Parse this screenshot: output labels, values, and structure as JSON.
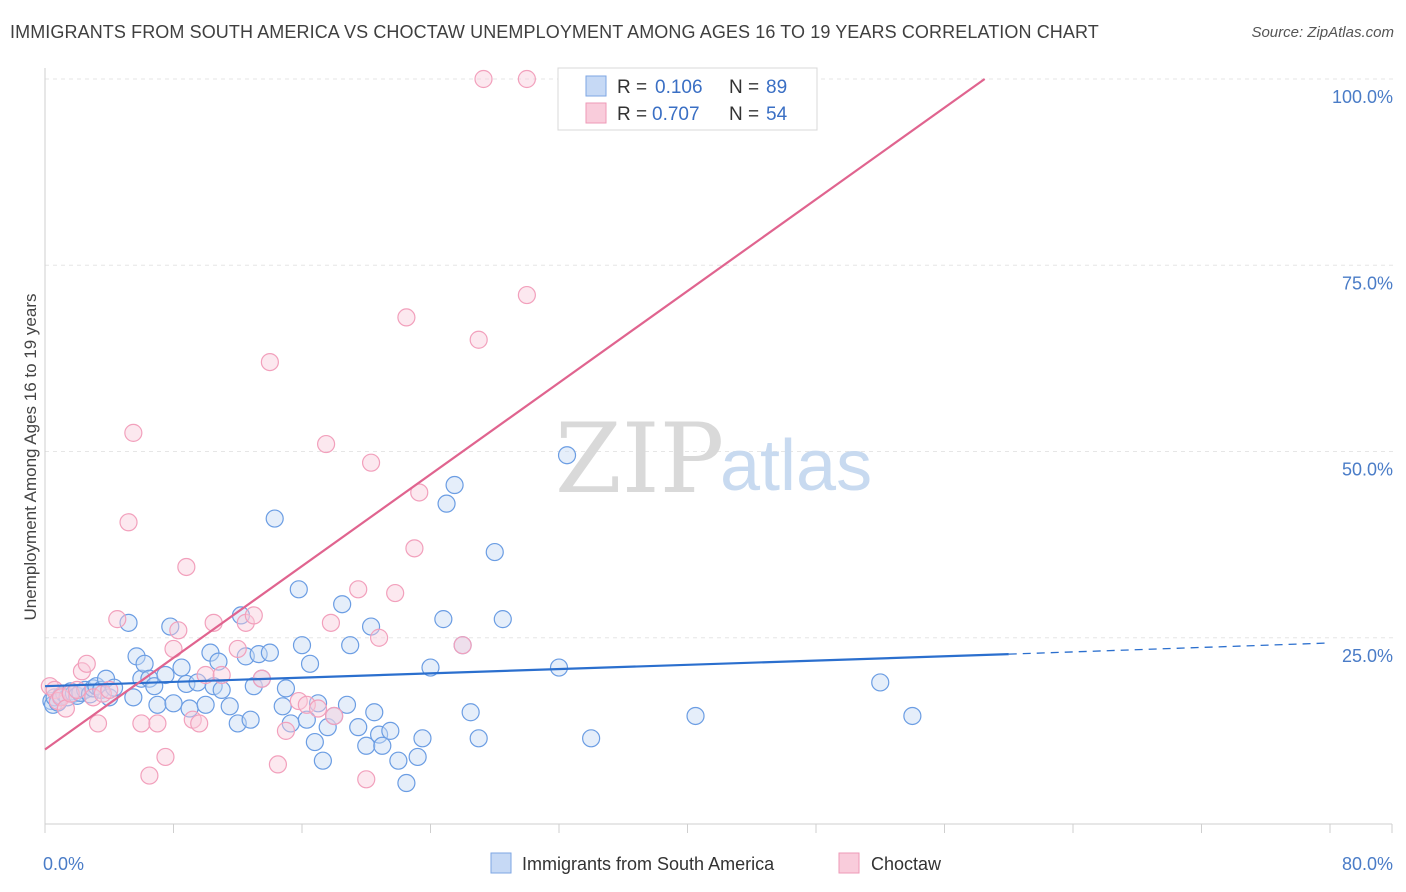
{
  "title": "IMMIGRANTS FROM SOUTH AMERICA VS CHOCTAW UNEMPLOYMENT AMONG AGES 16 TO 19 YEARS CORRELATION CHART",
  "source": "Source: ZipAtlas.com",
  "watermark": {
    "zip": "ZIP",
    "atlas": "atlas"
  },
  "legend": {
    "series1": {
      "r_label": "R = ",
      "r_value": "0.106",
      "n_label": "N = ",
      "n_value": "89"
    },
    "series2": {
      "r_label": "R = ",
      "r_value": "0.707",
      "n_label": "N = ",
      "n_value": "54"
    }
  },
  "chart_data": {
    "type": "scatter",
    "title": "IMMIGRANTS FROM SOUTH AMERICA VS CHOCTAW UNEMPLOYMENT AMONG AGES 16 TO 19 YEARS CORRELATION CHART",
    "xlabel": "",
    "ylabel": "Unemployment Among Ages 16 to 19 years",
    "xlim": [
      0,
      80
    ],
    "ylim": [
      0,
      100
    ],
    "x_tick_labels": [
      {
        "value": 0,
        "label": "0.0%"
      },
      {
        "value": 80,
        "label": "80.0%"
      }
    ],
    "y_tick_labels": [
      {
        "value": 25,
        "label": "25.0%"
      },
      {
        "value": 50,
        "label": "50.0%"
      },
      {
        "value": 75,
        "label": "75.0%"
      },
      {
        "value": 100,
        "label": "100.0%"
      }
    ],
    "grid": true,
    "legend_position": "bottom",
    "series": [
      {
        "name": "Immigrants from South America",
        "color": "#6b9de3",
        "trend": {
          "x": [
            0,
            60
          ],
          "y": [
            18.5,
            22.8
          ],
          "dashed_extension_to_x": 80,
          "dashed_end_y": 24.3,
          "color": "#2b6fce"
        },
        "points": [
          [
            0.4,
            16.5
          ],
          [
            0.5,
            16.0
          ],
          [
            0.6,
            17.0
          ],
          [
            0.8,
            16.3
          ],
          [
            1.0,
            17.2
          ],
          [
            1.2,
            17.5
          ],
          [
            1.4,
            17.0
          ],
          [
            1.6,
            17.8
          ],
          [
            1.8,
            17.5
          ],
          [
            2.0,
            17.2
          ],
          [
            2.2,
            17.6
          ],
          [
            2.5,
            18.0
          ],
          [
            2.8,
            17.4
          ],
          [
            3.0,
            18.2
          ],
          [
            3.2,
            18.5
          ],
          [
            3.5,
            18.0
          ],
          [
            3.8,
            19.5
          ],
          [
            4.0,
            17.0
          ],
          [
            4.3,
            18.3
          ],
          [
            5.2,
            27.0
          ],
          [
            5.5,
            17.0
          ],
          [
            5.7,
            22.5
          ],
          [
            6.0,
            19.5
          ],
          [
            6.2,
            21.5
          ],
          [
            6.5,
            19.5
          ],
          [
            6.8,
            18.5
          ],
          [
            7.0,
            16.0
          ],
          [
            7.5,
            20.0
          ],
          [
            7.8,
            26.5
          ],
          [
            8.0,
            16.2
          ],
          [
            8.5,
            21.0
          ],
          [
            8.8,
            18.8
          ],
          [
            9.0,
            15.5
          ],
          [
            9.5,
            19.0
          ],
          [
            10.0,
            16.0
          ],
          [
            10.3,
            23.0
          ],
          [
            10.5,
            18.5
          ],
          [
            10.8,
            21.8
          ],
          [
            11.0,
            18.0
          ],
          [
            11.5,
            15.8
          ],
          [
            12.0,
            13.5
          ],
          [
            12.2,
            28.0
          ],
          [
            12.5,
            22.5
          ],
          [
            12.8,
            14.0
          ],
          [
            13.0,
            18.5
          ],
          [
            13.3,
            22.8
          ],
          [
            13.5,
            19.5
          ],
          [
            14.0,
            23.0
          ],
          [
            14.3,
            41.0
          ],
          [
            14.8,
            15.8
          ],
          [
            15.0,
            18.2
          ],
          [
            15.3,
            13.5
          ],
          [
            15.8,
            31.5
          ],
          [
            16.0,
            24.0
          ],
          [
            16.3,
            14.0
          ],
          [
            16.5,
            21.5
          ],
          [
            16.8,
            11.0
          ],
          [
            17.0,
            16.2
          ],
          [
            17.3,
            8.5
          ],
          [
            17.6,
            13.0
          ],
          [
            18.0,
            14.5
          ],
          [
            18.5,
            29.5
          ],
          [
            18.8,
            16.0
          ],
          [
            19.0,
            24.0
          ],
          [
            19.5,
            13.0
          ],
          [
            20.0,
            10.5
          ],
          [
            20.3,
            26.5
          ],
          [
            20.5,
            15.0
          ],
          [
            20.8,
            12.0
          ],
          [
            21.0,
            10.5
          ],
          [
            21.5,
            12.5
          ],
          [
            22.0,
            8.5
          ],
          [
            22.5,
            5.5
          ],
          [
            23.2,
            9.0
          ],
          [
            23.5,
            11.5
          ],
          [
            24.0,
            21.0
          ],
          [
            24.8,
            27.5
          ],
          [
            25.0,
            43.0
          ],
          [
            25.5,
            45.5
          ],
          [
            26.0,
            24.0
          ],
          [
            26.5,
            15.0
          ],
          [
            27.0,
            11.5
          ],
          [
            28.0,
            36.5
          ],
          [
            28.5,
            27.5
          ],
          [
            32.0,
            21.0
          ],
          [
            32.5,
            49.5
          ],
          [
            34.0,
            11.5
          ],
          [
            40.5,
            14.5
          ],
          [
            52.0,
            19.0
          ],
          [
            54.0,
            14.5
          ]
        ]
      },
      {
        "name": "Choctaw",
        "color": "#f2a0bc",
        "trend": {
          "x": [
            0,
            58.5
          ],
          "y": [
            10.0,
            100.0
          ],
          "color": "#e0648f"
        },
        "points": [
          [
            0.3,
            18.5
          ],
          [
            0.6,
            18.0
          ],
          [
            0.8,
            16.5
          ],
          [
            1.0,
            17.0
          ],
          [
            1.3,
            15.5
          ],
          [
            1.6,
            17.5
          ],
          [
            2.0,
            18.0
          ],
          [
            2.3,
            20.5
          ],
          [
            2.6,
            21.5
          ],
          [
            3.0,
            17.0
          ],
          [
            3.3,
            13.5
          ],
          [
            3.6,
            17.5
          ],
          [
            4.0,
            18.0
          ],
          [
            4.5,
            27.5
          ],
          [
            5.2,
            40.5
          ],
          [
            5.5,
            52.5
          ],
          [
            6.0,
            13.5
          ],
          [
            6.5,
            6.5
          ],
          [
            7.0,
            13.5
          ],
          [
            7.5,
            9.0
          ],
          [
            8.0,
            23.5
          ],
          [
            8.3,
            26.0
          ],
          [
            8.8,
            34.5
          ],
          [
            9.2,
            14.0
          ],
          [
            9.6,
            13.5
          ],
          [
            10.0,
            20.0
          ],
          [
            10.5,
            27.0
          ],
          [
            11.0,
            20.0
          ],
          [
            12.0,
            23.5
          ],
          [
            12.5,
            27.0
          ],
          [
            13.0,
            28.0
          ],
          [
            13.5,
            19.5
          ],
          [
            14.0,
            62.0
          ],
          [
            14.5,
            8.0
          ],
          [
            15.0,
            12.5
          ],
          [
            15.8,
            16.5
          ],
          [
            16.3,
            16.0
          ],
          [
            17.0,
            15.5
          ],
          [
            17.5,
            51.0
          ],
          [
            17.8,
            27.0
          ],
          [
            18.0,
            14.5
          ],
          [
            19.5,
            31.5
          ],
          [
            20.0,
            6.0
          ],
          [
            20.3,
            48.5
          ],
          [
            20.8,
            25.0
          ],
          [
            21.8,
            31.0
          ],
          [
            22.5,
            68.0
          ],
          [
            23.0,
            37.0
          ],
          [
            23.3,
            44.5
          ],
          [
            26.0,
            24.0
          ],
          [
            27.0,
            65.0
          ],
          [
            30.0,
            71.0
          ],
          [
            27.3,
            100.0
          ],
          [
            30.0,
            100.0
          ]
        ]
      }
    ]
  }
}
